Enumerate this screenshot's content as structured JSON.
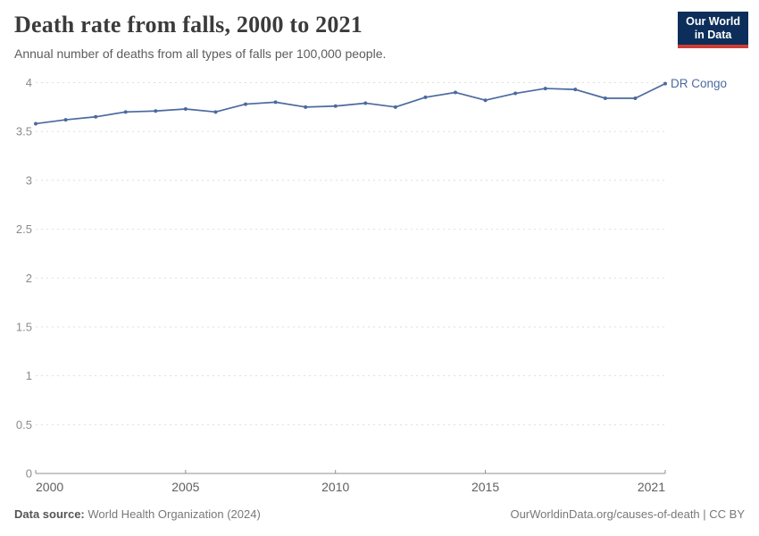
{
  "chart_data": {
    "type": "line",
    "title": "Death rate from falls, 2000 to 2021",
    "subtitle": "Annual number of deaths from all types of falls per 100,000 people.",
    "xlabel": "",
    "ylabel": "",
    "xlim": [
      2000,
      2021
    ],
    "ylim": [
      0,
      4
    ],
    "yticks": [
      0,
      0.5,
      1,
      1.5,
      2,
      2.5,
      3,
      3.5,
      4
    ],
    "xticks": [
      2000,
      2005,
      2010,
      2015,
      2021
    ],
    "grid": "horizontal-dashed",
    "legend_position": "end-of-line-label",
    "end_label": "DR Congo",
    "series": [
      {
        "name": "DR Congo",
        "x": [
          2000,
          2001,
          2002,
          2003,
          2004,
          2005,
          2006,
          2007,
          2008,
          2009,
          2010,
          2011,
          2012,
          2013,
          2014,
          2015,
          2016,
          2017,
          2018,
          2019,
          2020,
          2021
        ],
        "values": [
          3.58,
          3.62,
          3.65,
          3.7,
          3.71,
          3.73,
          3.7,
          3.78,
          3.8,
          3.75,
          3.76,
          3.79,
          3.75,
          3.85,
          3.9,
          3.82,
          3.89,
          3.94,
          3.93,
          3.84,
          3.84,
          3.99
        ]
      }
    ]
  },
  "logo": {
    "line1": "Our World",
    "line2": "in Data"
  },
  "footer": {
    "datasource_prefix": "Data source:",
    "datasource": " World Health Organization (2024)",
    "attribution": "OurWorldinData.org/causes-of-death | CC BY"
  },
  "colors": {
    "line": "#4b6a9f",
    "title": "#3b3b3b",
    "subtitle": "#5c5c5c",
    "y_axis_label": "#8c8c8c",
    "x_axis_label": "#5f5f5f",
    "grid": "#dedede",
    "axis": "#8f8f8f",
    "logo_bg": "#0d2e5a",
    "logo_red": "#cd3d34",
    "footer": "#787878",
    "footer_dark": "#555555"
  }
}
